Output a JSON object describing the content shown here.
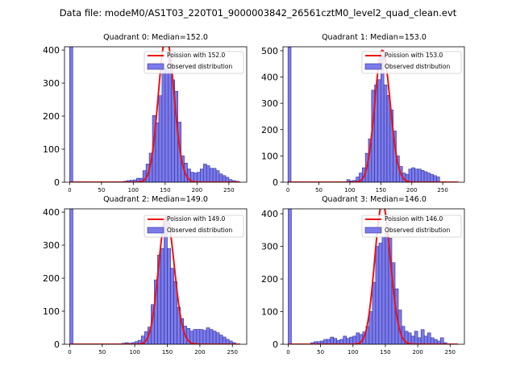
{
  "figure_title": "Data file: modeM0/AS1T03_220T01_9000003842_26561cztM0_level2_quad_clean.evt",
  "colors": {
    "bar_fill": "#7b7bea",
    "bar_edge": "#2d2d9e",
    "curve": "#ee1111",
    "axis": "#000000"
  },
  "chart_data": [
    {
      "type": "bar",
      "title": "Quadrant 0: Median=152.0",
      "median": 152.0,
      "legend": [
        "Poission with 152.0",
        "Observed distribution"
      ],
      "legend_position": "top-right",
      "xlim": [
        -8,
        278
      ],
      "ylim": [
        0,
        410
      ],
      "xticks": [
        0,
        50,
        100,
        150,
        200,
        250
      ],
      "yticks": [
        0,
        100,
        200,
        300,
        400
      ],
      "bin_width": 5,
      "bins": [
        [
          0,
          410
        ],
        [
          80,
          2
        ],
        [
          85,
          3
        ],
        [
          90,
          5
        ],
        [
          95,
          6
        ],
        [
          100,
          7
        ],
        [
          105,
          12
        ],
        [
          110,
          12
        ],
        [
          115,
          35
        ],
        [
          120,
          55
        ],
        [
          125,
          88
        ],
        [
          130,
          202
        ],
        [
          135,
          180
        ],
        [
          140,
          262
        ],
        [
          145,
          345
        ],
        [
          150,
          345
        ],
        [
          155,
          385
        ],
        [
          160,
          310
        ],
        [
          165,
          275
        ],
        [
          170,
          182
        ],
        [
          175,
          80
        ],
        [
          180,
          58
        ],
        [
          185,
          40
        ],
        [
          190,
          30
        ],
        [
          195,
          28
        ],
        [
          200,
          30
        ],
        [
          205,
          40
        ],
        [
          210,
          55
        ],
        [
          215,
          50
        ],
        [
          220,
          42
        ],
        [
          225,
          42
        ],
        [
          230,
          35
        ],
        [
          235,
          25
        ],
        [
          240,
          20
        ],
        [
          245,
          15
        ],
        [
          250,
          8
        ],
        [
          255,
          5
        ],
        [
          260,
          3
        ]
      ]
    },
    {
      "type": "bar",
      "title": "Quadrant 1: Median=153.0",
      "median": 153.0,
      "legend": [
        "Poission with 153.0",
        "Observed distribution"
      ],
      "legend_position": "top-right",
      "xlim": [
        -8,
        285
      ],
      "ylim": [
        0,
        515
      ],
      "xticks": [
        0,
        50,
        100,
        150,
        200,
        250
      ],
      "yticks": [
        0,
        100,
        200,
        300,
        400,
        500
      ],
      "bin_width": 5,
      "bins": [
        [
          0,
          515
        ],
        [
          95,
          10
        ],
        [
          100,
          5
        ],
        [
          105,
          7
        ],
        [
          110,
          20
        ],
        [
          115,
          35
        ],
        [
          120,
          55
        ],
        [
          125,
          110
        ],
        [
          130,
          165
        ],
        [
          135,
          350
        ],
        [
          140,
          370
        ],
        [
          145,
          390
        ],
        [
          150,
          480
        ],
        [
          155,
          370
        ],
        [
          160,
          330
        ],
        [
          165,
          275
        ],
        [
          170,
          195
        ],
        [
          175,
          100
        ],
        [
          180,
          60
        ],
        [
          185,
          35
        ],
        [
          190,
          30
        ],
        [
          195,
          50
        ],
        [
          200,
          55
        ],
        [
          205,
          50
        ],
        [
          210,
          50
        ],
        [
          215,
          45
        ],
        [
          220,
          40
        ],
        [
          225,
          35
        ],
        [
          230,
          30
        ],
        [
          235,
          25
        ],
        [
          240,
          20
        ]
      ]
    },
    {
      "type": "bar",
      "title": "Quadrant 2: Median=149.0",
      "median": 149.0,
      "legend": [
        "Poission with 149.0",
        "Observed distribution"
      ],
      "legend_position": "top-right",
      "xlim": [
        -8,
        272
      ],
      "ylim": [
        0,
        410
      ],
      "xticks": [
        0,
        50,
        100,
        150,
        200,
        250
      ],
      "yticks": [
        0,
        100,
        200,
        300,
        400
      ],
      "bin_width": 5,
      "bins": [
        [
          0,
          410
        ],
        [
          80,
          3
        ],
        [
          85,
          5
        ],
        [
          90,
          3
        ],
        [
          95,
          5
        ],
        [
          100,
          8
        ],
        [
          105,
          12
        ],
        [
          110,
          25
        ],
        [
          115,
          38
        ],
        [
          120,
          52
        ],
        [
          125,
          120
        ],
        [
          130,
          195
        ],
        [
          135,
          270
        ],
        [
          140,
          290
        ],
        [
          145,
          380
        ],
        [
          150,
          290
        ],
        [
          155,
          230
        ],
        [
          160,
          190
        ],
        [
          165,
          112
        ],
        [
          170,
          78
        ],
        [
          175,
          55
        ],
        [
          180,
          48
        ],
        [
          185,
          40
        ],
        [
          190,
          45
        ],
        [
          195,
          45
        ],
        [
          200,
          45
        ],
        [
          205,
          42
        ],
        [
          210,
          50
        ],
        [
          215,
          45
        ],
        [
          220,
          40
        ],
        [
          225,
          35
        ],
        [
          230,
          28
        ],
        [
          235,
          22
        ],
        [
          240,
          15
        ],
        [
          245,
          10
        ],
        [
          250,
          5
        ]
      ]
    },
    {
      "type": "bar",
      "title": "Quadrant 3: Median=146.0",
      "median": 146.0,
      "legend": [
        "Poission with 146.0",
        "Observed distribution"
      ],
      "legend_position": "top-right",
      "xlim": [
        -8,
        272
      ],
      "ylim": [
        0,
        415
      ],
      "xticks": [
        0,
        50,
        100,
        150,
        200,
        250
      ],
      "yticks": [
        0,
        100,
        200,
        300,
        400
      ],
      "bin_width": 5,
      "bins": [
        [
          0,
          415
        ],
        [
          35,
          5
        ],
        [
          40,
          8
        ],
        [
          45,
          8
        ],
        [
          50,
          10
        ],
        [
          55,
          15
        ],
        [
          60,
          15
        ],
        [
          65,
          22
        ],
        [
          70,
          18
        ],
        [
          75,
          12
        ],
        [
          80,
          15
        ],
        [
          85,
          25
        ],
        [
          90,
          18
        ],
        [
          95,
          22
        ],
        [
          100,
          25
        ],
        [
          105,
          35
        ],
        [
          110,
          30
        ],
        [
          115,
          38
        ],
        [
          120,
          55
        ],
        [
          125,
          100
        ],
        [
          130,
          190
        ],
        [
          135,
          300
        ],
        [
          140,
          310
        ],
        [
          145,
          330
        ],
        [
          150,
          340
        ],
        [
          155,
          325
        ],
        [
          160,
          250
        ],
        [
          165,
          170
        ],
        [
          170,
          105
        ],
        [
          175,
          55
        ],
        [
          180,
          40
        ],
        [
          185,
          35
        ],
        [
          190,
          25
        ],
        [
          195,
          40
        ],
        [
          200,
          20
        ],
        [
          205,
          45
        ],
        [
          210,
          25
        ],
        [
          215,
          35
        ],
        [
          220,
          20
        ],
        [
          225,
          15
        ],
        [
          230,
          10
        ],
        [
          235,
          20
        ],
        [
          240,
          5
        ]
      ]
    }
  ]
}
